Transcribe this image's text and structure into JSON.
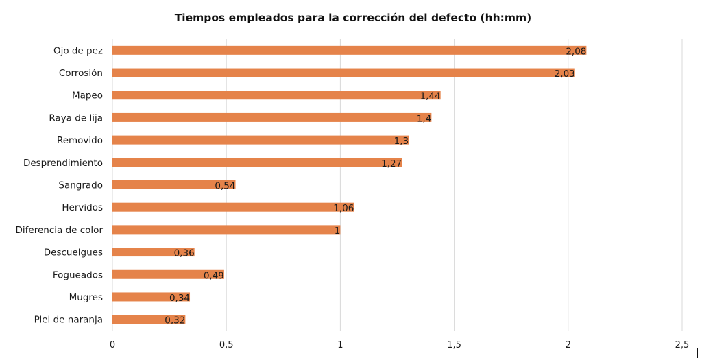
{
  "chart_data": {
    "type": "bar",
    "orientation": "horizontal",
    "title": "Tiempos empleados para la corrección del defecto (hh:mm)",
    "xlabel": "",
    "ylabel": "",
    "categories": [
      "Ojo de pez",
      "Corrosión",
      "Mapeo",
      "Raya de lija",
      "Removido",
      "Desprendimiento",
      "Sangrado",
      "Hervidos",
      "Diferencia de color",
      "Descuelgues",
      "Fogueados",
      "Mugres",
      "Piel de naranja"
    ],
    "values": [
      2.08,
      2.03,
      1.44,
      1.4,
      1.3,
      1.27,
      0.54,
      1.06,
      1,
      0.36,
      0.49,
      0.34,
      0.32
    ],
    "value_labels": [
      "2,08",
      "2,03",
      "1,44",
      "1,4",
      "1,3",
      "1,27",
      "0,54",
      "1,06",
      "1",
      "0,36",
      "0,49",
      "0,34",
      "0,32"
    ],
    "xlim": [
      0,
      2.5
    ],
    "xticks": [
      0,
      0.5,
      1,
      1.5,
      2,
      2.5
    ],
    "xtick_labels": [
      "0",
      "0,5",
      "1",
      "1,5",
      "2",
      "2,5"
    ],
    "grid": "vertical",
    "legend": "none",
    "colors": {
      "bar": "#E5834A",
      "grid": "#D9D9D9",
      "text": "#1a1a1a"
    }
  }
}
